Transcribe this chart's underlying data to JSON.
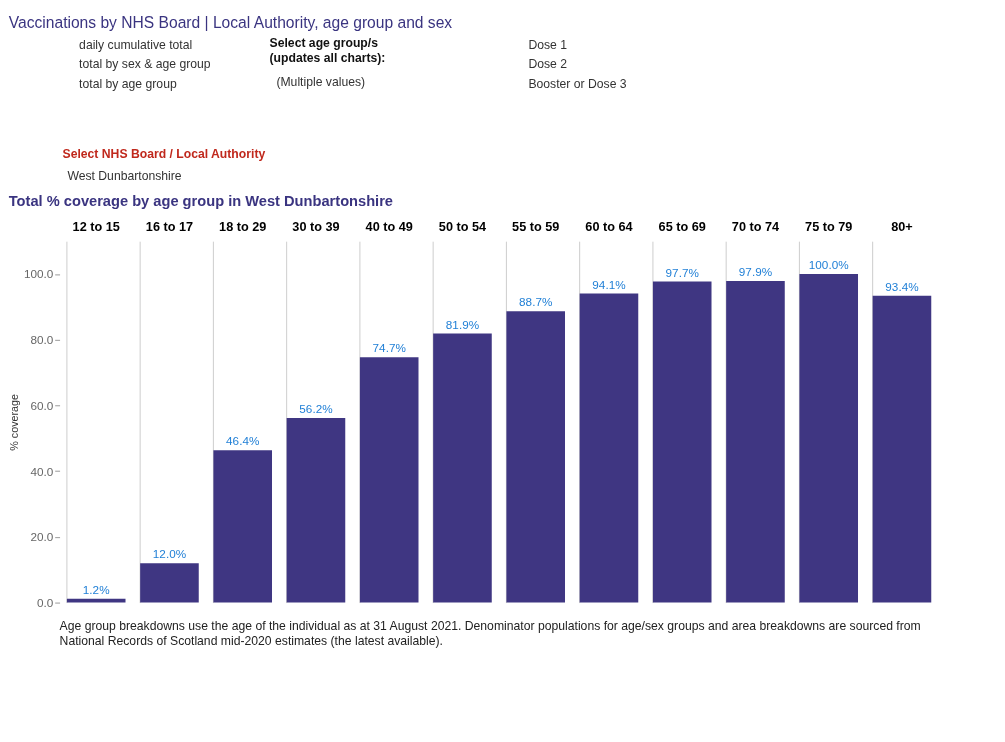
{
  "chart_data": {
    "type": "bar",
    "title": "Vaccinations by NHS Board | Local Authority, age group and sex",
    "subtitle": "Total % coverage by age group in West Dunbartonshire",
    "ylabel": "% coverage",
    "categories": [
      "12 to 15",
      "16 to 17",
      "18 to 29",
      "30 to 39",
      "40 to 49",
      "50 to 54",
      "55 to 59",
      "60 to 64",
      "65 to 69",
      "70 to 74",
      "75 to 79",
      "80+"
    ],
    "values": [
      1.2,
      12.0,
      46.4,
      56.2,
      74.7,
      81.9,
      88.7,
      94.1,
      97.7,
      97.9,
      100.0,
      93.4
    ],
    "value_labels": [
      "1.2%",
      "12.0%",
      "46.4%",
      "56.2%",
      "74.7%",
      "81.9%",
      "88.7%",
      "94.1%",
      "97.7%",
      "97.9%",
      "100.0%",
      "93.4%"
    ],
    "color": "#3f3682",
    "ylim": [
      0,
      110
    ],
    "yticks": [
      {
        "value": 0,
        "label": "0.0"
      },
      {
        "value": 20,
        "label": "20.0"
      },
      {
        "value": 40,
        "label": "40.0"
      },
      {
        "value": 60,
        "label": "60.0"
      },
      {
        "value": 80,
        "label": "80.0"
      },
      {
        "value": 100,
        "label": "100.0"
      }
    ],
    "grid": "x",
    "annotations": [
      "daily cumulative total",
      "total by sex & age group",
      "total by age group",
      "Select age group/s",
      "(updates all charts):",
      "(Multiple values)",
      "Dose 1",
      "Dose 2",
      "Booster or Dose 3",
      "Select NHS Board / Local Authority",
      "West Dunbartonshire",
      "Age group breakdowns use the age of the individual as at 31 August 2021. Denominator populations for age/sex groups and area breakdowns are sourced from National Records of Scotland mid-2020 estimates (the latest available)."
    ]
  }
}
